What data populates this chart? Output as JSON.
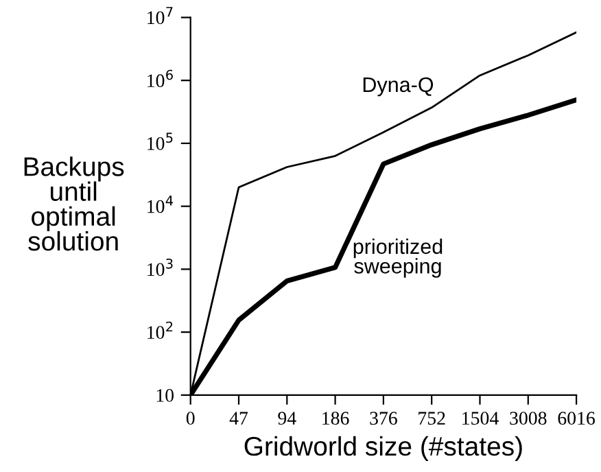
{
  "chart_data": {
    "type": "line",
    "xlabel": "Gridworld size (#states)",
    "ylabel": "Backups\nuntil\noptimal\nsolution",
    "categories": [
      "0",
      "47",
      "94",
      "186",
      "376",
      "752",
      "1504",
      "3008",
      "6016"
    ],
    "series": [
      {
        "name": "Dyna-Q",
        "color": "#000000",
        "values": [
          10,
          20000,
          42000,
          63000,
          150000,
          370000,
          1200000,
          2500000,
          5800000
        ]
      },
      {
        "name": "prioritized\nsweeping",
        "color": "#000000",
        "values": [
          10,
          155,
          650,
          1070,
          47000,
          95000,
          170000,
          280000,
          490000
        ]
      }
    ],
    "log": "y",
    "ylim": [
      10,
      10000000
    ],
    "yticks": [
      10,
      {
        "value": 100,
        "label": "10$^{2}$"
      },
      {
        "value": 1000,
        "label": "10$^{3}$"
      },
      {
        "value": 10000,
        "label": "10$^{4}$"
      },
      {
        "value": 100000,
        "label": "10$^{5}$"
      },
      {
        "value": 1000000,
        "label": "10$^{6}$"
      },
      {
        "value": 10000000,
        "label": "10$^{7}$"
      }
    ],
    "grid": false,
    "legend": false,
    "marker": "none",
    "line_style": "solid"
  }
}
